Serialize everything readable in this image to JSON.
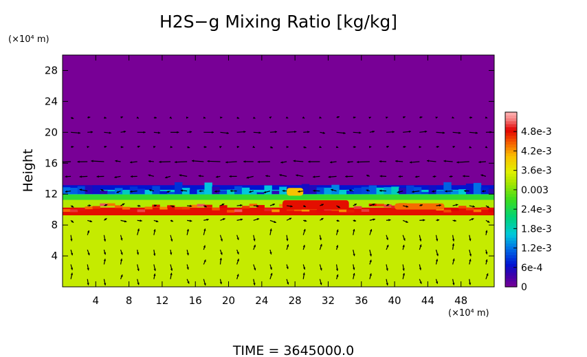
{
  "chart_data": {
    "type": "heatmap",
    "title": "H2S−g Mixing Ratio [kg/kg]",
    "ylabel": "Height",
    "y_unit": "(×10⁴ m)",
    "x_unit": "(×10⁴ m)",
    "xlim": [
      0,
      52
    ],
    "ylim": [
      0,
      30
    ],
    "x_ticks": [
      {
        "value": 4,
        "label": "4"
      },
      {
        "value": 8,
        "label": "8"
      },
      {
        "value": 12,
        "label": "12"
      },
      {
        "value": 16,
        "label": "16"
      },
      {
        "value": 20,
        "label": "20"
      },
      {
        "value": 24,
        "label": "24"
      },
      {
        "value": 28,
        "label": "28"
      },
      {
        "value": 32,
        "label": "32"
      },
      {
        "value": 36,
        "label": "36"
      },
      {
        "value": 40,
        "label": "40"
      },
      {
        "value": 44,
        "label": "44"
      },
      {
        "value": 48,
        "label": "48"
      }
    ],
    "y_ticks": [
      {
        "value": 4,
        "label": "4"
      },
      {
        "value": 8,
        "label": "8"
      },
      {
        "value": 12,
        "label": "12"
      },
      {
        "value": 16,
        "label": "16"
      },
      {
        "value": 20,
        "label": "20"
      },
      {
        "value": 24,
        "label": "24"
      },
      {
        "value": 28,
        "label": "28"
      }
    ],
    "colorbar": {
      "range": [
        0,
        0.0054
      ],
      "ticks": [
        {
          "value": 0,
          "label": "0"
        },
        {
          "value": 0.0006,
          "label": "6e-4"
        },
        {
          "value": 0.0012,
          "label": "1.2e-3"
        },
        {
          "value": 0.0018,
          "label": "1.8e-3"
        },
        {
          "value": 0.0024,
          "label": "2.4e-3"
        },
        {
          "value": 0.003,
          "label": "0.003"
        },
        {
          "value": 0.0036,
          "label": "3.6e-3"
        },
        {
          "value": 0.0042,
          "label": "4.2e-3"
        },
        {
          "value": 0.0048,
          "label": "4.8e-3"
        }
      ]
    },
    "field_profile": {
      "description_free": true,
      "levels": [
        {
          "y_min": 0,
          "y_max": 9.3,
          "value": 0.0034
        },
        {
          "y_min": 9.3,
          "y_max": 10.3,
          "value": 0.0048
        },
        {
          "y_min": 10.3,
          "y_max": 11.3,
          "value": 0.0033
        },
        {
          "y_min": 11.3,
          "y_max": 12.0,
          "value": 0.0026
        },
        {
          "y_min": 12.0,
          "y_max": 12.6,
          "value": 0.0017
        },
        {
          "y_min": 12.6,
          "y_max": 13.2,
          "value": 0.0007
        },
        {
          "y_min": 13.2,
          "y_max": 30,
          "value": 0.0
        }
      ],
      "hotspots": [
        {
          "x_min": 26.5,
          "x_max": 34.5,
          "y_min": 10.0,
          "y_max": 11.2,
          "value": 0.0048
        },
        {
          "x_min": 27.0,
          "x_max": 29.0,
          "y_min": 11.8,
          "y_max": 12.8,
          "value": 0.004
        },
        {
          "x_min": 40.0,
          "x_max": 46.0,
          "y_min": 10.0,
          "y_max": 10.8,
          "value": 0.0044
        }
      ]
    },
    "vectors": {
      "x_step": 2,
      "y_step": 1.9,
      "u": [
        {
          "y_min": 19.0,
          "y_max": 21.5,
          "u": 1.0,
          "v": 0.0
        },
        {
          "y_min": 15.0,
          "y_max": 18.0,
          "u": -1.3,
          "v": 0.0
        },
        {
          "y_min": 12.0,
          "y_max": 15.0,
          "u": -0.8,
          "v": 0.1
        },
        {
          "y_min": 8.0,
          "y_max": 12.0,
          "u": 0.6,
          "v": 0.2
        },
        {
          "y_min": 0.0,
          "y_max": 8.0,
          "u": 0.2,
          "v": 0.8
        }
      ]
    },
    "footer": "TIME  =  3645000.0"
  }
}
